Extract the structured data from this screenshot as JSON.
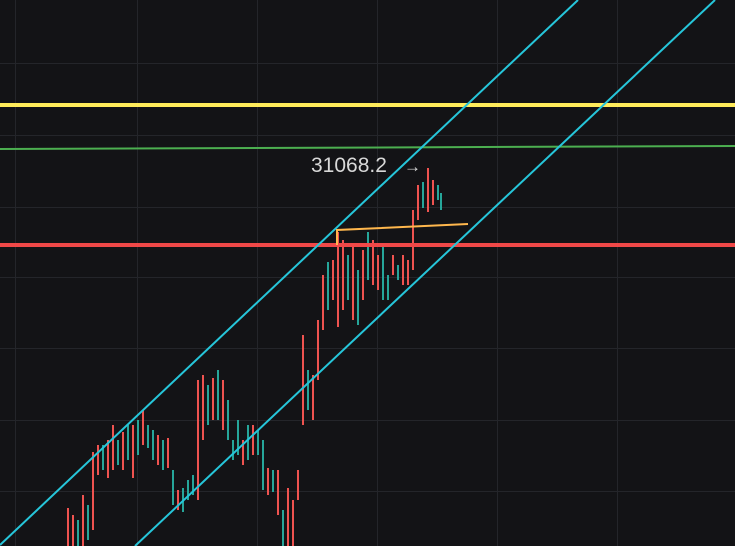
{
  "price_label": {
    "value": "31068.2",
    "arrow": "→"
  }
}
